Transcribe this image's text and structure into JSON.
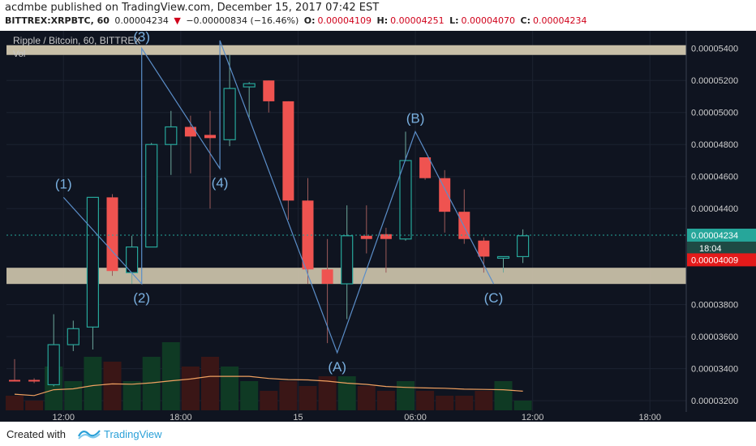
{
  "header": {
    "publisher_line": "acdmbe published on TradingView.com, December 15, 2017 07:42 EST",
    "symbol": "BITTREX:XRPBTC, 60",
    "last": "0.00004234",
    "change_arrow": "▼",
    "change": "−0.00000834 (−16.46%)",
    "o_label": "O:",
    "o_value": "0.00004109",
    "h_label": "H:",
    "h_value": "0.00004251",
    "l_label": "L:",
    "l_value": "0.00004070",
    "c_label": "C:",
    "c_value": "0.00004234"
  },
  "legend": {
    "title": "Ripple / Bitcoin, 60, BITTREX",
    "vol": "Vol"
  },
  "footer": {
    "created_with": "Created with",
    "brand": "TradingView"
  },
  "colors": {
    "up": "#26a69a",
    "down": "#ef5350",
    "zone": "#c8bfa8",
    "wave_line": "#5b8ec9",
    "ma_line": "#f0a060",
    "last_price_bg": "#26a69a",
    "low_price_bg": "#e41a1a"
  },
  "chart_data": {
    "type": "candlestick",
    "price_axis_labels": [
      "0.00005400",
      "0.00005200",
      "0.00005000",
      "0.00004800",
      "0.00004600",
      "0.00004400",
      "0.00003800",
      "0.00003600",
      "0.00003400",
      "0.00003200"
    ],
    "time_axis_labels": [
      "12:00",
      "18:00",
      "15",
      "06:00",
      "12:00",
      "18:00"
    ],
    "ylim": [
      3.14e-05,
      5.5e-05
    ],
    "last_price_tag": "0.00004234",
    "countdown_tag": "18:04",
    "alert_price_tag": "0.00004009",
    "candles": [
      {
        "o": 3.33e-05,
        "h": 3.46e-05,
        "l": 3.32e-05,
        "c": 3.32e-05
      },
      {
        "o": 3.33e-05,
        "h": 3.34e-05,
        "l": 3.31e-05,
        "c": 3.32e-05
      },
      {
        "o": 3.3e-05,
        "h": 3.74e-05,
        "l": 3.29e-05,
        "c": 3.55e-05
      },
      {
        "o": 3.55e-05,
        "h": 3.7e-05,
        "l": 3.51e-05,
        "c": 3.65e-05
      },
      {
        "o": 3.66e-05,
        "h": 4.47e-05,
        "l": 3.52e-05,
        "c": 4.47e-05
      },
      {
        "o": 4.47e-05,
        "h": 4.49e-05,
        "l": 3.98e-05,
        "c": 4.01e-05
      },
      {
        "o": 4e-05,
        "h": 4.23e-05,
        "l": 3.93e-05,
        "c": 4.16e-05
      },
      {
        "o": 4.16e-05,
        "h": 4.81e-05,
        "l": 4.16e-05,
        "c": 4.8e-05
      },
      {
        "o": 4.8e-05,
        "h": 5.01e-05,
        "l": 4.61e-05,
        "c": 4.91e-05
      },
      {
        "o": 4.91e-05,
        "h": 4.98e-05,
        "l": 4.62e-05,
        "c": 4.85e-05
      },
      {
        "o": 4.86e-05,
        "h": 5.01e-05,
        "l": 4.4e-05,
        "c": 4.84e-05
      },
      {
        "o": 4.83e-05,
        "h": 5.36e-05,
        "l": 4.79e-05,
        "c": 5.15e-05
      },
      {
        "o": 5.16e-05,
        "h": 5.19e-05,
        "l": 4.97e-05,
        "c": 5.18e-05
      },
      {
        "o": 5.2e-05,
        "h": 5.2e-05,
        "l": 5e-05,
        "c": 5.07e-05
      },
      {
        "o": 5.07e-05,
        "h": 5.07e-05,
        "l": 4.33e-05,
        "c": 4.45e-05
      },
      {
        "o": 4.45e-05,
        "h": 4.59e-05,
        "l": 3.93e-05,
        "c": 4.02e-05
      },
      {
        "o": 4.02e-05,
        "h": 4.21e-05,
        "l": 3.56e-05,
        "c": 3.93e-05
      },
      {
        "o": 3.93e-05,
        "h": 4.42e-05,
        "l": 3.71e-05,
        "c": 4.23e-05
      },
      {
        "o": 4.23e-05,
        "h": 4.42e-05,
        "l": 4.12e-05,
        "c": 4.21e-05
      },
      {
        "o": 4.24e-05,
        "h": 4.28e-05,
        "l": 4e-05,
        "c": 4.21e-05
      },
      {
        "o": 4.21e-05,
        "h": 4.88e-05,
        "l": 4.2e-05,
        "c": 4.7e-05
      },
      {
        "o": 4.72e-05,
        "h": 4.72e-05,
        "l": 4.58e-05,
        "c": 4.59e-05
      },
      {
        "o": 4.59e-05,
        "h": 4.64e-05,
        "l": 4.25e-05,
        "c": 4.38e-05
      },
      {
        "o": 4.38e-05,
        "h": 4.52e-05,
        "l": 4.18e-05,
        "c": 4.21e-05
      },
      {
        "o": 4.2e-05,
        "h": 4.22e-05,
        "l": 4e-05,
        "c": 4.1e-05
      },
      {
        "o": 4.1e-05,
        "h": 4.1e-05,
        "l": 4e-05,
        "c": 4.1e-05
      },
      {
        "o": 4.1e-05,
        "h": 4.27e-05,
        "l": 4.06e-05,
        "c": 4.23e-05
      }
    ],
    "volume": [
      0.15,
      0.1,
      0.45,
      0.3,
      0.55,
      0.5,
      0.3,
      0.55,
      0.7,
      0.45,
      0.55,
      0.45,
      0.3,
      0.2,
      0.3,
      0.25,
      0.35,
      0.35,
      0.25,
      0.2,
      0.3,
      0.2,
      0.15,
      0.15,
      0.2,
      0.3,
      0.1
    ],
    "wave_labels": [
      {
        "label": "(1)",
        "price": 4.47e-05
      },
      {
        "label": "(2)",
        "price": 3.93e-05
      },
      {
        "label": "(3)",
        "price": 5.4e-05
      },
      {
        "label": "(4)",
        "price": 4.65e-05
      },
      {
        "label": "(A)",
        "price": 3.5e-05
      },
      {
        "label": "(B)",
        "price": 4.88e-05
      },
      {
        "label": "(C)",
        "price": 3.93e-05
      }
    ]
  }
}
